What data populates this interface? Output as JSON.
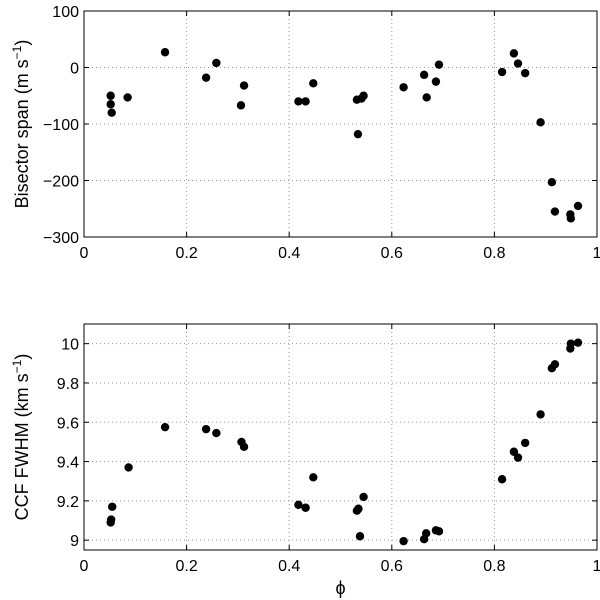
{
  "chart_data": [
    {
      "type": "scatter",
      "ylabel": "Bisector span (m s",
      "ylabel_sup": "−1",
      "ylabel_close": ")",
      "xlabel": "",
      "xlim": [
        0,
        1
      ],
      "ylim": [
        -300,
        100
      ],
      "xticks": [
        0,
        0.2,
        0.4,
        0.6,
        0.8,
        1
      ],
      "xtick_labels": [
        "0",
        "0.2",
        "0.4",
        "0.6",
        "0.8",
        "1"
      ],
      "yticks": [
        -300,
        -200,
        -100,
        0,
        100
      ],
      "ytick_labels": [
        "−300",
        "−200",
        "−100",
        "0",
        "100"
      ],
      "grid": true,
      "marker_color": "#000000",
      "points": [
        {
          "x": 0.052,
          "y": -50
        },
        {
          "x": 0.052,
          "y": -65
        },
        {
          "x": 0.054,
          "y": -80
        },
        {
          "x": 0.085,
          "y": -53
        },
        {
          "x": 0.158,
          "y": 27
        },
        {
          "x": 0.238,
          "y": -18
        },
        {
          "x": 0.258,
          "y": 8
        },
        {
          "x": 0.306,
          "y": -67
        },
        {
          "x": 0.312,
          "y": -32
        },
        {
          "x": 0.418,
          "y": -60
        },
        {
          "x": 0.432,
          "y": -60
        },
        {
          "x": 0.447,
          "y": -28
        },
        {
          "x": 0.532,
          "y": -57
        },
        {
          "x": 0.534,
          "y": -118
        },
        {
          "x": 0.541,
          "y": -55
        },
        {
          "x": 0.545,
          "y": -50
        },
        {
          "x": 0.623,
          "y": -35
        },
        {
          "x": 0.663,
          "y": -13
        },
        {
          "x": 0.668,
          "y": -53
        },
        {
          "x": 0.686,
          "y": -25
        },
        {
          "x": 0.692,
          "y": 5
        },
        {
          "x": 0.815,
          "y": -8
        },
        {
          "x": 0.838,
          "y": 25
        },
        {
          "x": 0.846,
          "y": 7
        },
        {
          "x": 0.86,
          "y": -10
        },
        {
          "x": 0.89,
          "y": -97
        },
        {
          "x": 0.912,
          "y": -203
        },
        {
          "x": 0.918,
          "y": -255
        },
        {
          "x": 0.948,
          "y": -260
        },
        {
          "x": 0.949,
          "y": -267
        },
        {
          "x": 0.963,
          "y": -245
        }
      ]
    },
    {
      "type": "scatter",
      "ylabel": "CCF FWHM (km s",
      "ylabel_sup": "−1",
      "ylabel_close": ")",
      "xlabel": "ϕ",
      "xlim": [
        0,
        1
      ],
      "ylim": [
        8.95,
        10.1
      ],
      "xticks": [
        0,
        0.2,
        0.4,
        0.6,
        0.8,
        1
      ],
      "xtick_labels": [
        "0",
        "0.2",
        "0.4",
        "0.6",
        "0.8",
        "1"
      ],
      "yticks": [
        9,
        9.2,
        9.4,
        9.6,
        9.8,
        10
      ],
      "ytick_labels": [
        "9",
        "9.2",
        "9.4",
        "9.6",
        "9.8",
        "10"
      ],
      "grid": true,
      "marker_color": "#000000",
      "points": [
        {
          "x": 0.052,
          "y": 9.09
        },
        {
          "x": 0.053,
          "y": 9.105
        },
        {
          "x": 0.055,
          "y": 9.17
        },
        {
          "x": 0.087,
          "y": 9.37
        },
        {
          "x": 0.158,
          "y": 9.575
        },
        {
          "x": 0.238,
          "y": 9.565
        },
        {
          "x": 0.258,
          "y": 9.545
        },
        {
          "x": 0.307,
          "y": 9.5
        },
        {
          "x": 0.312,
          "y": 9.475
        },
        {
          "x": 0.418,
          "y": 9.18
        },
        {
          "x": 0.432,
          "y": 9.165
        },
        {
          "x": 0.447,
          "y": 9.32
        },
        {
          "x": 0.532,
          "y": 9.15
        },
        {
          "x": 0.535,
          "y": 9.16
        },
        {
          "x": 0.538,
          "y": 9.02
        },
        {
          "x": 0.545,
          "y": 9.22
        },
        {
          "x": 0.623,
          "y": 8.995
        },
        {
          "x": 0.663,
          "y": 9.005
        },
        {
          "x": 0.667,
          "y": 9.035
        },
        {
          "x": 0.686,
          "y": 9.05
        },
        {
          "x": 0.692,
          "y": 9.045
        },
        {
          "x": 0.815,
          "y": 9.31
        },
        {
          "x": 0.838,
          "y": 9.45
        },
        {
          "x": 0.846,
          "y": 9.42
        },
        {
          "x": 0.86,
          "y": 9.495
        },
        {
          "x": 0.89,
          "y": 9.64
        },
        {
          "x": 0.912,
          "y": 9.875
        },
        {
          "x": 0.918,
          "y": 9.895
        },
        {
          "x": 0.948,
          "y": 9.975
        },
        {
          "x": 0.949,
          "y": 10.0
        },
        {
          "x": 0.963,
          "y": 10.005
        }
      ]
    }
  ]
}
